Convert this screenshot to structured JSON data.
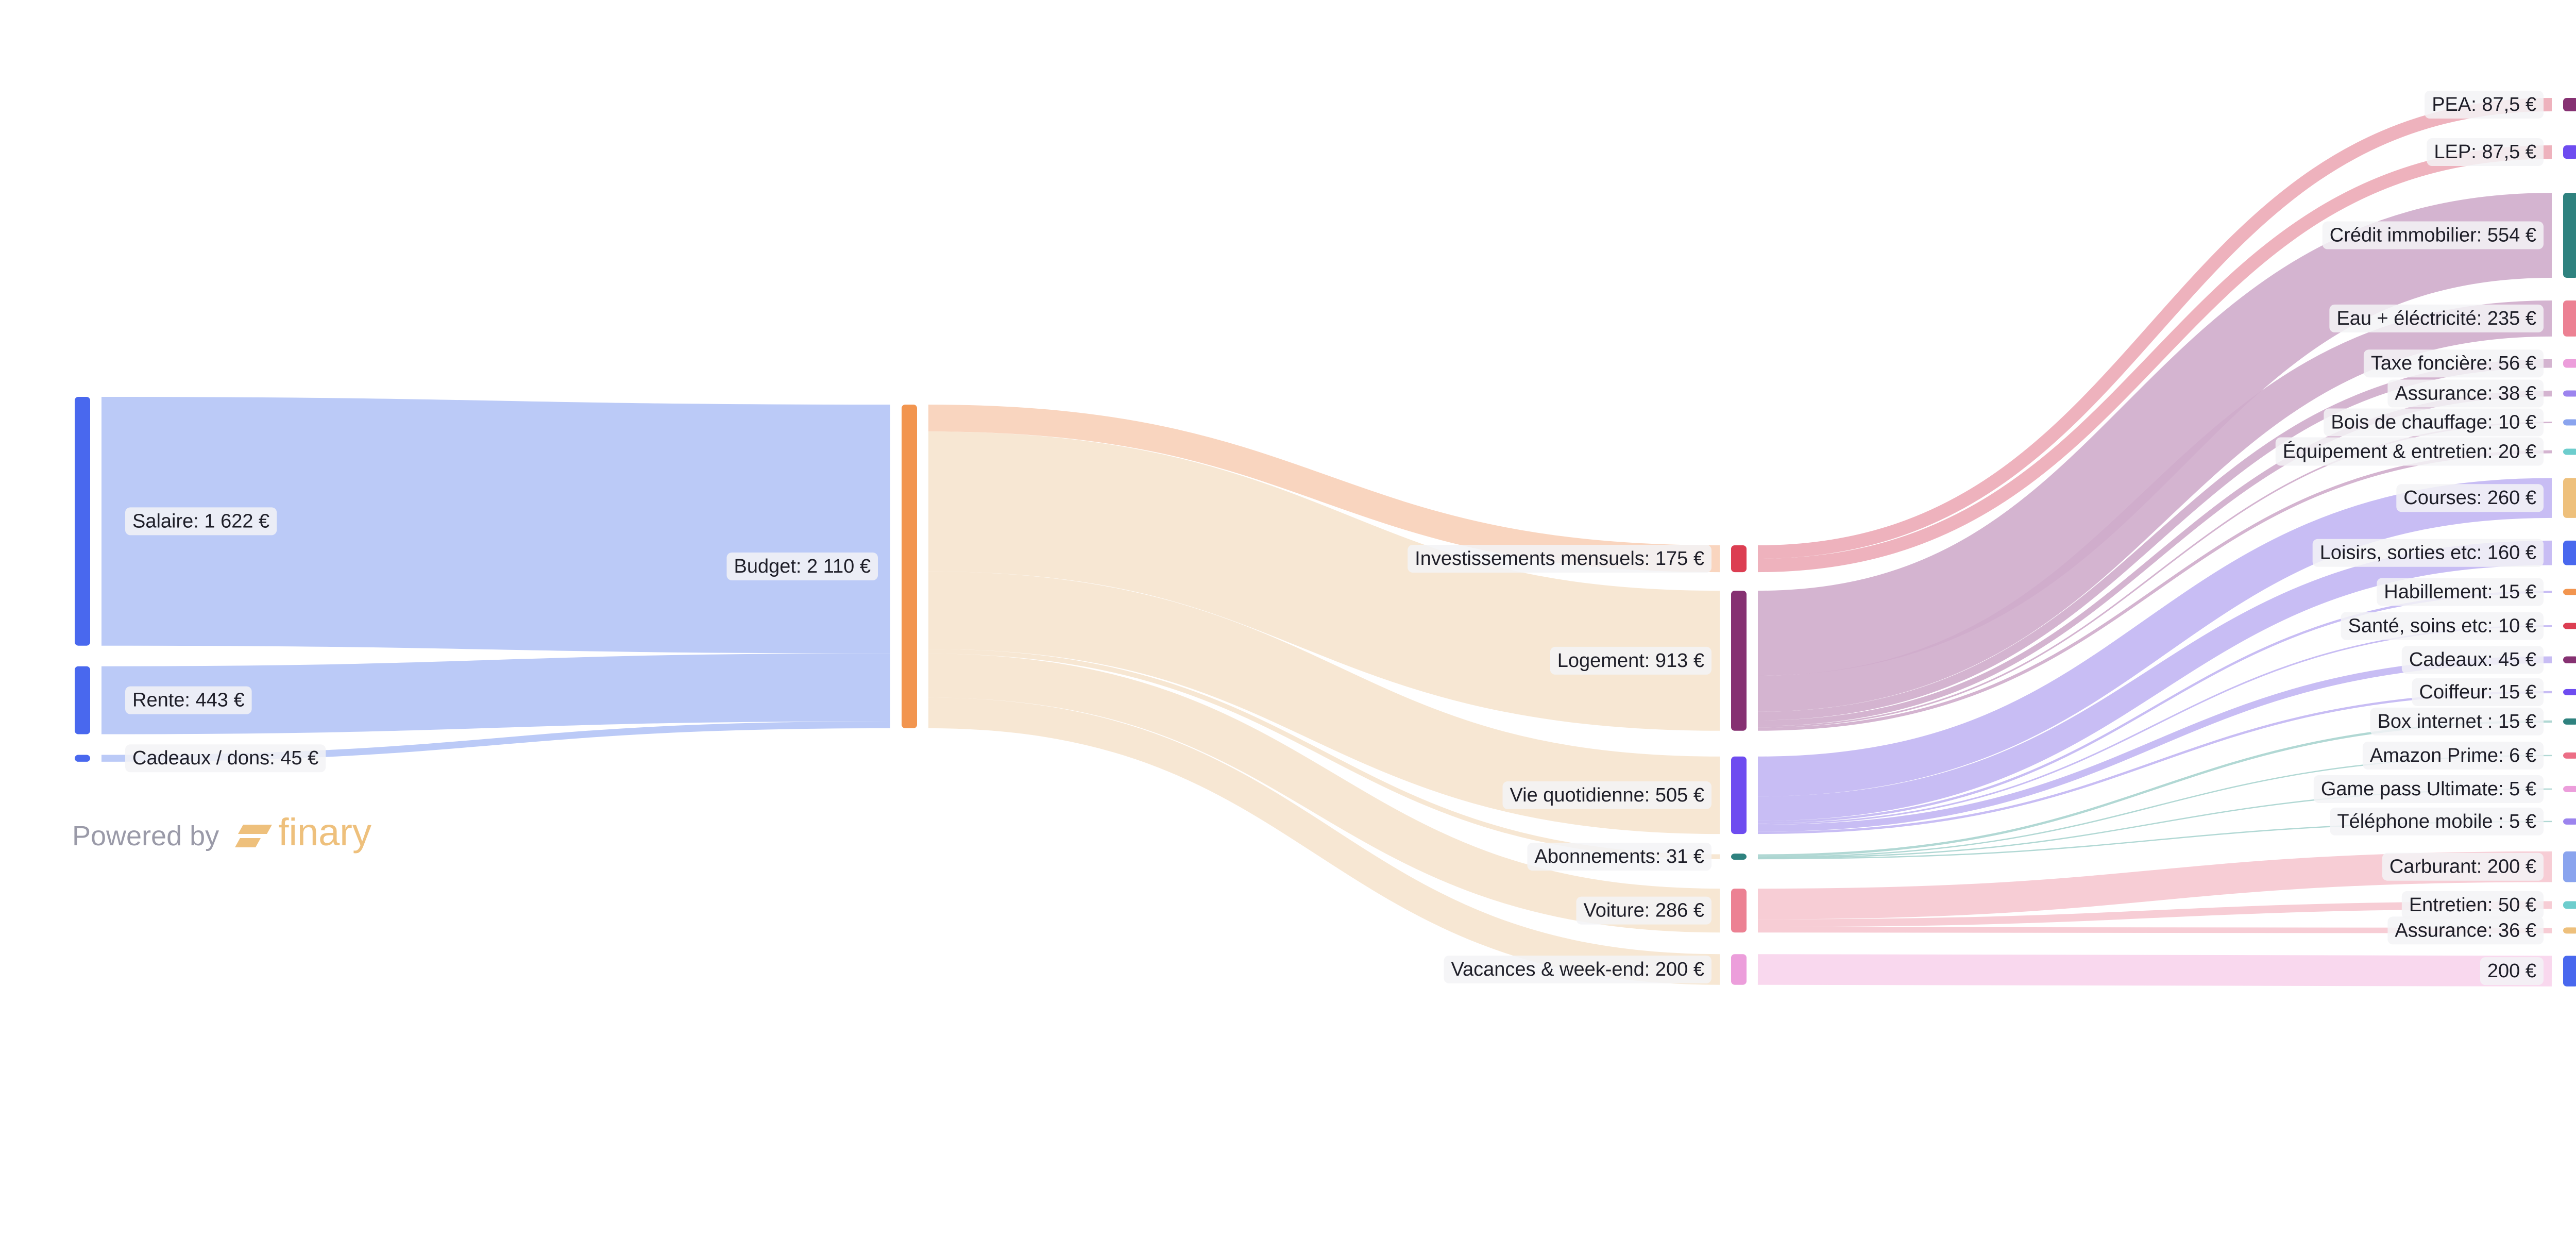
{
  "chart_data": {
    "type": "sankey",
    "currency": "€",
    "nodes": [
      {
        "id": "salaire",
        "label": "Salaire: 1 622 €",
        "value": 1622,
        "column": 0,
        "color": "#4968ee"
      },
      {
        "id": "rente",
        "label": "Rente: 443 €",
        "value": 443,
        "column": 0,
        "color": "#4968ee"
      },
      {
        "id": "cadeaux_dons",
        "label": "Cadeaux / dons: 45 €",
        "value": 45,
        "column": 0,
        "color": "#4968ee"
      },
      {
        "id": "budget",
        "label": "Budget: 2 110 €",
        "value": 2110,
        "column": 1,
        "color": "#f2954f"
      },
      {
        "id": "investissements",
        "label": "Investissements mensuels: 175 €",
        "value": 175,
        "column": 2,
        "color": "#dc3e52"
      },
      {
        "id": "logement",
        "label": "Logement: 913 €",
        "value": 913,
        "column": 2,
        "color": "#863172"
      },
      {
        "id": "vie",
        "label": "Vie quotidienne: 505 €",
        "value": 505,
        "column": 2,
        "color": "#6e4cf0"
      },
      {
        "id": "abonnements",
        "label": "Abonnements: 31 €",
        "value": 31,
        "column": 2,
        "color": "#2f827f"
      },
      {
        "id": "voiture",
        "label": "Voiture: 286 €",
        "value": 286,
        "column": 2,
        "color": "#ec8193"
      },
      {
        "id": "vacances",
        "label": "Vacances & week-end: 200 €",
        "value": 200,
        "column": 2,
        "color": "#ec9edb"
      },
      {
        "id": "pea",
        "label": "PEA: 87,5 €",
        "value": 87.5,
        "column": 3,
        "color": "#863172"
      },
      {
        "id": "lep",
        "label": "LEP: 87,5 €",
        "value": 87.5,
        "column": 3,
        "color": "#6e4cf0"
      },
      {
        "id": "credit",
        "label": "Crédit immobilier: 554 €",
        "value": 554,
        "column": 3,
        "color": "#2f827f"
      },
      {
        "id": "eau",
        "label": "Eau + éléctricité: 235 €",
        "value": 235,
        "column": 3,
        "color": "#ec8193"
      },
      {
        "id": "taxe",
        "label": "Taxe foncière: 56 €",
        "value": 56,
        "column": 3,
        "color": "#ec9edb"
      },
      {
        "id": "assurance_log",
        "label": "Assurance: 38 €",
        "value": 38,
        "column": 3,
        "color": "#9c84ee"
      },
      {
        "id": "bois",
        "label": "Bois de chauffage: 10 €",
        "value": 10,
        "column": 3,
        "color": "#8aa4ee"
      },
      {
        "id": "equipement",
        "label": "Équipement & entretien: 20 €",
        "value": 20,
        "column": 3,
        "color": "#6dcdcd"
      },
      {
        "id": "courses",
        "label": "Courses: 260 €",
        "value": 260,
        "column": 3,
        "color": "#eec07c"
      },
      {
        "id": "loisirs",
        "label": "Loisirs, sorties etc: 160 €",
        "value": 160,
        "column": 3,
        "color": "#4968ee"
      },
      {
        "id": "habillement",
        "label": "Habillement: 15 €",
        "value": 15,
        "column": 3,
        "color": "#f2954f"
      },
      {
        "id": "sante",
        "label": "Santé, soins etc: 10 €",
        "value": 10,
        "column": 3,
        "color": "#dc3e52"
      },
      {
        "id": "cadeaux",
        "label": "Cadeaux: 45 €",
        "value": 45,
        "column": 3,
        "color": "#863172"
      },
      {
        "id": "coiffeur",
        "label": "Coiffeur: 15 €",
        "value": 15,
        "column": 3,
        "color": "#6e4cf0"
      },
      {
        "id": "box",
        "label": "Box internet : 15 €",
        "value": 15,
        "column": 3,
        "color": "#2f827f"
      },
      {
        "id": "amazon",
        "label": "Amazon Prime: 6 €",
        "value": 6,
        "column": 3,
        "color": "#ec6e86"
      },
      {
        "id": "gamepass",
        "label": "Game pass Ultimate: 5 €",
        "value": 5,
        "column": 3,
        "color": "#ec9edb"
      },
      {
        "id": "telephone",
        "label": "Téléphone mobile : 5 €",
        "value": 5,
        "column": 3,
        "color": "#9c84ee"
      },
      {
        "id": "carburant",
        "label": "Carburant: 200 €",
        "value": 200,
        "column": 3,
        "color": "#8aa4ee"
      },
      {
        "id": "entretien",
        "label": "Entretien: 50 €",
        "value": 50,
        "column": 3,
        "color": "#6dcdcd"
      },
      {
        "id": "assurance_auto",
        "label": "Assurance: 36 €",
        "value": 36,
        "column": 3,
        "color": "#eec07c"
      },
      {
        "id": "vac200",
        "label": "200 €",
        "value": 200,
        "column": 3,
        "color": "#4968ee"
      }
    ],
    "links": [
      {
        "source": "salaire",
        "target": "budget",
        "value": 1622,
        "color": "#b4c4f6"
      },
      {
        "source": "rente",
        "target": "budget",
        "value": 443,
        "color": "#b4c4f6"
      },
      {
        "source": "cadeaux_dons",
        "target": "budget",
        "value": 45,
        "color": "#b4c4f6"
      },
      {
        "source": "budget",
        "target": "investissements",
        "value": 175,
        "color": "#f8d0b8"
      },
      {
        "source": "budget",
        "target": "logement",
        "value": 913,
        "color": "#f6e4ce"
      },
      {
        "source": "budget",
        "target": "vie",
        "value": 505,
        "color": "#f6e4ce"
      },
      {
        "source": "budget",
        "target": "abonnements",
        "value": 31,
        "color": "#f6e4ce"
      },
      {
        "source": "budget",
        "target": "voiture",
        "value": 286,
        "color": "#f6e4ce"
      },
      {
        "source": "budget",
        "target": "vacances",
        "value": 200,
        "color": "#f6e4ce"
      },
      {
        "source": "investissements",
        "target": "pea",
        "value": 87.5,
        "color": "#ecaab6"
      },
      {
        "source": "investissements",
        "target": "lep",
        "value": 87.5,
        "color": "#ecaab6"
      },
      {
        "source": "logement",
        "target": "credit",
        "value": 554,
        "color": "#cfaccb"
      },
      {
        "source": "logement",
        "target": "eau",
        "value": 235,
        "color": "#cfaccb"
      },
      {
        "source": "logement",
        "target": "taxe",
        "value": 56,
        "color": "#cfaccb"
      },
      {
        "source": "logement",
        "target": "assurance_log",
        "value": 38,
        "color": "#cfaccb"
      },
      {
        "source": "logement",
        "target": "bois",
        "value": 10,
        "color": "#cfaccb"
      },
      {
        "source": "logement",
        "target": "equipement",
        "value": 20,
        "color": "#cfaccb"
      },
      {
        "source": "vie",
        "target": "courses",
        "value": 260,
        "color": "#c2b6f3"
      },
      {
        "source": "vie",
        "target": "loisirs",
        "value": 160,
        "color": "#c2b6f3"
      },
      {
        "source": "vie",
        "target": "habillement",
        "value": 15,
        "color": "#c2b6f3"
      },
      {
        "source": "vie",
        "target": "sante",
        "value": 10,
        "color": "#c2b6f3"
      },
      {
        "source": "vie",
        "target": "cadeaux",
        "value": 45,
        "color": "#c2b6f3"
      },
      {
        "source": "vie",
        "target": "coiffeur",
        "value": 15,
        "color": "#c2b6f3"
      },
      {
        "source": "abonnements",
        "target": "box",
        "value": 15,
        "color": "#a9d4cf"
      },
      {
        "source": "abonnements",
        "target": "amazon",
        "value": 6,
        "color": "#a9d4cf"
      },
      {
        "source": "abonnements",
        "target": "gamepass",
        "value": 5,
        "color": "#a9d4cf"
      },
      {
        "source": "abonnements",
        "target": "telephone",
        "value": 5,
        "color": "#a9d4cf"
      },
      {
        "source": "voiture",
        "target": "carburant",
        "value": 200,
        "color": "#f6c8d0"
      },
      {
        "source": "voiture",
        "target": "entretien",
        "value": 50,
        "color": "#f6c8d0"
      },
      {
        "source": "voiture",
        "target": "assurance_auto",
        "value": 36,
        "color": "#f6c8d0"
      },
      {
        "source": "vacances",
        "target": "vac200",
        "value": 200,
        "color": "#f8d4ec"
      }
    ]
  },
  "branding": {
    "powered_by_text": "Powered by",
    "brand_name": "finary",
    "text_color": "#9a9aa8",
    "brand_color": "#eec07c"
  }
}
